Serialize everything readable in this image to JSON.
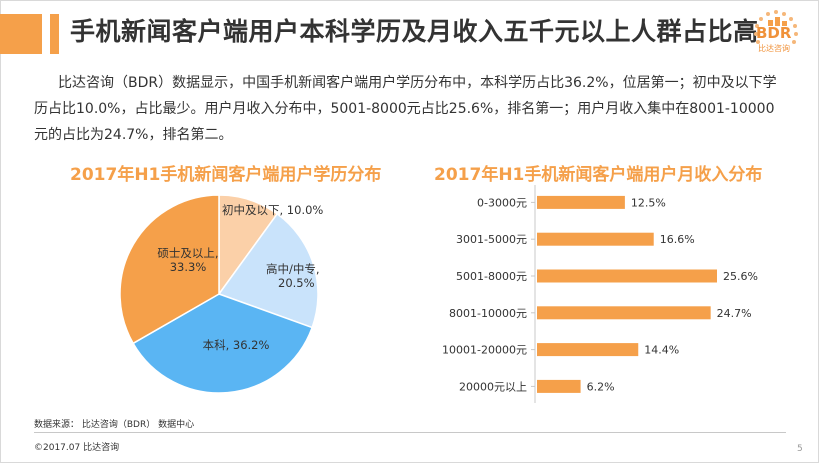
{
  "header": {
    "title": "手机新闻客户端用户本科学历及月收入五千元以上人群占比高"
  },
  "logo": {
    "text": "BDR",
    "subtext": "比达咨询"
  },
  "summary": "比达咨询（BDR）数据显示，中国手机新闻客户端用户学历分布中，本科学历占比36.2%，位居第一；初中及以下学历占比10.0%，占比最少。用户月收入分布中，5001-8000元占比25.6%，排名第一；用户月收入集中在8001-10000元的占比为24.7%，排名第二。",
  "chart_data": [
    {
      "type": "pie",
      "title": "2017年H1手机新闻客户端用户学历分布",
      "slices": [
        {
          "label": "初中及以下",
          "value": 10.0,
          "display": "初中及以下, 10.0%",
          "color": "#fbd0a8"
        },
        {
          "label": "高中/中专",
          "value": 20.5,
          "display_line1": "高中/中专,",
          "display_line2": "20.5%",
          "color": "#c9e3fb"
        },
        {
          "label": "本科",
          "value": 36.2,
          "display": "本科, 36.2%",
          "color": "#5ab5f3"
        },
        {
          "label": "硕士及以上",
          "value": 33.3,
          "display_line1": "硕士及以上,",
          "display_line2": "33.3%",
          "color": "#f5a04a"
        }
      ]
    },
    {
      "type": "bar",
      "orientation": "horizontal",
      "title": "2017年H1手机新闻客户端用户月收入分布",
      "categories": [
        "0-3000元",
        "3001-5000元",
        "5001-8000元",
        "8001-10000元",
        "10001-20000元",
        "20000元以上"
      ],
      "values": [
        12.5,
        16.6,
        25.6,
        24.7,
        14.4,
        6.2
      ],
      "labels": [
        "12.5%",
        "16.6%",
        "25.6%",
        "24.7%",
        "14.4%",
        "6.2%"
      ],
      "unit": "%",
      "xlim": [
        0,
        30
      ],
      "color": "#f5a04a"
    }
  ],
  "footer": {
    "source": "数据来源： 比达咨询（BDR） 数据中心",
    "copyright": "©2017.07   比达咨询",
    "page": "5"
  }
}
